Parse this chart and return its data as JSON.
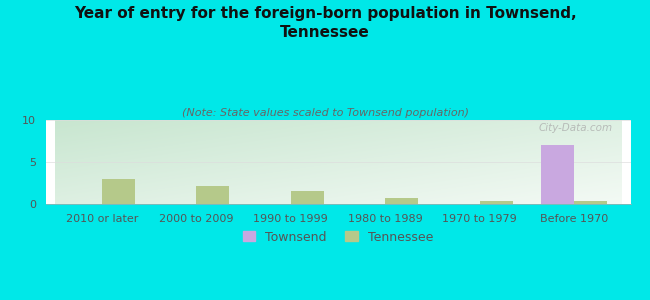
{
  "title": "Year of entry for the foreign-born population in Townsend,\nTennessee",
  "subtitle": "(Note: State values scaled to Townsend population)",
  "categories": [
    "2010 or later",
    "2000 to 2009",
    "1990 to 1999",
    "1980 to 1989",
    "1970 to 1979",
    "Before 1970"
  ],
  "townsend_values": [
    0,
    0,
    0,
    0,
    0,
    7.0
  ],
  "tennessee_values": [
    3.0,
    2.2,
    1.5,
    0.7,
    0.35,
    0.4
  ],
  "townsend_color": "#c9a8e0",
  "tennessee_color": "#b5c98a",
  "background_color": "#00e8e8",
  "plot_bg_color_topleft": "#c8e6d0",
  "plot_bg_color_bottomright": "#f8fff8",
  "ylim": [
    0,
    10
  ],
  "yticks": [
    0,
    5,
    10
  ],
  "bar_width": 0.35,
  "watermark": "City-Data.com",
  "legend_townsend": "Townsend",
  "legend_tennessee": "Tennessee",
  "title_fontsize": 11,
  "subtitle_fontsize": 8,
  "tick_fontsize": 8,
  "tick_color": "#555555"
}
